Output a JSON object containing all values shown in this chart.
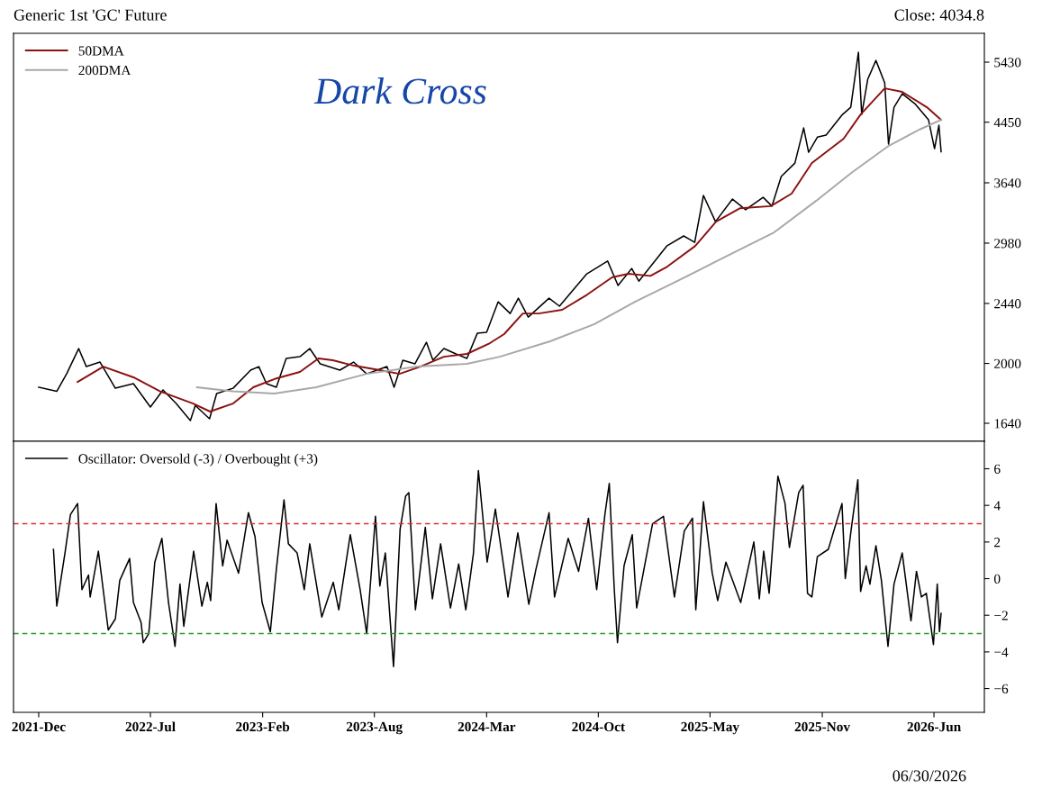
{
  "chart_data": [
    {
      "type": "line",
      "title": "Generic 1st 'GC' Future",
      "subtitle": "Close: 4034.8",
      "annotations": [
        "Dark Cross"
      ],
      "log": true,
      "legend": "top left",
      "tick_labels": "y",
      "xlim": [
        "2021-11-09",
        "2026-09-17"
      ],
      "ylim": [
        1545,
        5975
      ],
      "yticks": [
        1640,
        2000,
        2440,
        2980,
        3640,
        4450,
        5430
      ],
      "series": [
        {
          "color": "#000000",
          "x": [
            "2021-12-25",
            "2022-01-27",
            "2022-02-14",
            "2022-03-08",
            "2022-03-22",
            "2022-04-16",
            "2022-05-14",
            "2022-06-16",
            "2022-07-17",
            "2022-08-09",
            "2022-09-02",
            "2022-09-28",
            "2022-10-07",
            "2022-11-02",
            "2022-11-15",
            "2022-12-15",
            "2023-01-16",
            "2023-01-31",
            "2023-02-14",
            "2023-03-04",
            "2023-03-22",
            "2023-04-16",
            "2023-05-04",
            "2023-05-23",
            "2023-06-28",
            "2023-07-23",
            "2023-08-16",
            "2023-09-22",
            "2023-10-05",
            "2023-10-21",
            "2023-11-12",
            "2023-12-03",
            "2023-12-15",
            "2024-01-04",
            "2024-01-26",
            "2024-02-15",
            "2024-03-05",
            "2024-03-22",
            "2024-04-12",
            "2024-05-04",
            "2024-05-19",
            "2024-06-06",
            "2024-07-14",
            "2024-08-02",
            "2024-09-21",
            "2024-10-29",
            "2024-11-17",
            "2024-12-12",
            "2024-12-25",
            "2025-02-14",
            "2025-03-17",
            "2025-04-06",
            "2025-04-22",
            "2025-05-14",
            "2025-06-14",
            "2025-07-08",
            "2025-08-09",
            "2025-08-25",
            "2025-09-11",
            "2025-10-06",
            "2025-10-22",
            "2025-10-31",
            "2025-11-16",
            "2025-12-02",
            "2026-01-01",
            "2026-01-16",
            "2026-01-30",
            "2026-02-05",
            "2026-02-16",
            "2026-03-03",
            "2026-03-19",
            "2026-03-26",
            "2026-04-05",
            "2026-04-20",
            "2026-05-13",
            "2026-06-07",
            "2026-06-18",
            "2026-06-26",
            "2026-06-30"
          ],
          "values": [
            1848,
            1823,
            1932,
            2101,
            1979,
            2009,
            1842,
            1870,
            1731,
            1832,
            1751,
            1655,
            1740,
            1665,
            1810,
            1842,
            1956,
            1979,
            1870,
            1848,
            2033,
            2045,
            2101,
            1997,
            1956,
            2009,
            1932,
            1979,
            1848,
            2021,
            1997,
            2145,
            2021,
            2101,
            2064,
            2033,
            2210,
            2217,
            2453,
            2360,
            2483,
            2332,
            2483,
            2418,
            2692,
            2808,
            2590,
            2740,
            2627,
            2952,
            3052,
            2988,
            3491,
            3200,
            3449,
            3329,
            3469,
            3369,
            3716,
            3886,
            4366,
            4028,
            4234,
            4263,
            4566,
            4676,
            5610,
            4566,
            5130,
            5461,
            5069,
            4138,
            4676,
            4890,
            4733,
            4485,
            4076,
            4405,
            4034.8
          ]
        },
        {
          "name": "50DMA",
          "color": "#8b1111",
          "x": [
            "2022-03-06",
            "2022-04-22",
            "2022-06-16",
            "2022-08-04",
            "2022-10-03",
            "2022-11-03",
            "2022-12-15",
            "2023-01-21",
            "2023-03-04",
            "2023-04-16",
            "2023-05-20",
            "2023-06-15",
            "2023-07-24",
            "2023-09-09",
            "2023-10-15",
            "2023-11-22",
            "2024-01-04",
            "2024-02-15",
            "2024-03-28",
            "2024-04-23",
            "2024-05-27",
            "2024-06-25",
            "2024-08-07",
            "2024-09-22",
            "2024-11-06",
            "2024-12-06",
            "2025-01-15",
            "2025-02-15",
            "2025-04-07",
            "2025-05-15",
            "2025-06-28",
            "2025-08-23",
            "2025-09-30",
            "2025-11-06",
            "2026-01-03",
            "2026-02-03",
            "2026-03-19",
            "2026-04-20",
            "2026-06-04",
            "2026-06-30"
          ],
          "values": [
            1881,
            1979,
            1910,
            1823,
            1751,
            1705,
            1751,
            1848,
            1903,
            1944,
            2033,
            2021,
            1985,
            1956,
            1932,
            1979,
            2045,
            2064,
            2139,
            2204,
            2360,
            2360,
            2389,
            2513,
            2660,
            2692,
            2673,
            2757,
            2952,
            3200,
            3346,
            3369,
            3512,
            3886,
            4213,
            4566,
            4978,
            4920,
            4676,
            4485
          ]
        },
        {
          "name": "200DMA",
          "color": "#a8a8a8",
          "x": [
            "2022-10-10",
            "2022-12-15",
            "2023-02-28",
            "2023-05-16",
            "2023-08-16",
            "2023-11-16",
            "2024-02-15",
            "2024-04-15",
            "2024-07-16",
            "2024-10-05",
            "2024-12-18",
            "2025-03-05",
            "2025-06-01",
            "2025-08-29",
            "2025-11-14",
            "2026-01-17",
            "2026-03-26",
            "2026-05-21",
            "2026-06-30"
          ],
          "values": [
            1848,
            1823,
            1810,
            1848,
            1932,
            1979,
            1997,
            2045,
            2152,
            2278,
            2453,
            2627,
            2848,
            3088,
            3430,
            3761,
            4113,
            4341,
            4485
          ]
        }
      ]
    },
    {
      "type": "line",
      "annotations": [
        "06/30/2026"
      ],
      "legend": "top left",
      "xlim": [
        "2021-11-09",
        "2026-09-17"
      ],
      "xticks": [
        {
          "value": "2021-12-25",
          "label": "2021-Dec"
        },
        {
          "value": "2022-07-17",
          "label": "2022-Jul"
        },
        {
          "value": "2023-02-07",
          "label": "2023-Feb"
        },
        {
          "value": "2023-08-30",
          "label": "2023-Aug"
        },
        {
          "value": "2024-03-22",
          "label": "2024-Mar"
        },
        {
          "value": "2024-10-12",
          "label": "2024-Oct"
        },
        {
          "value": "2025-05-04",
          "label": "2025-May"
        },
        {
          "value": "2025-11-25",
          "label": "2025-Nov"
        },
        {
          "value": "2026-06-17",
          "label": "2026-Jun"
        }
      ],
      "ylim": [
        -7.3,
        7.5
      ],
      "yticks": [
        {
          "value": -6,
          "label": "−6"
        },
        {
          "value": -4,
          "label": "−4"
        },
        {
          "value": -2,
          "label": "−2"
        },
        0,
        2,
        4,
        6
      ],
      "ref_lines": [
        {
          "axis": "y",
          "value": 3,
          "color": "#e03030",
          "line_style": "dashed"
        },
        {
          "axis": "y",
          "value": -3,
          "color": "#2a9a2a",
          "line_style": "dashed"
        }
      ],
      "series": [
        {
          "name": "Oscillator: Oversold (-3) / Overbought (+3)",
          "color": "#000000",
          "x": [
            "2022-01-21",
            "2022-01-27",
            "2022-02-11",
            "2022-02-21",
            "2022-03-06",
            "2022-03-14",
            "2022-03-26",
            "2022-03-29",
            "2022-04-13",
            "2022-05-01",
            "2022-05-14",
            "2022-05-22",
            "2022-06-09",
            "2022-06-16",
            "2022-06-30",
            "2022-07-04",
            "2022-07-14",
            "2022-07-25",
            "2022-08-07",
            "2022-08-19",
            "2022-08-31",
            "2022-09-09",
            "2022-09-16",
            "2022-10-04",
            "2022-10-19",
            "2022-10-29",
            "2022-11-04",
            "2022-11-14",
            "2022-11-26",
            "2022-12-04",
            "2022-12-25",
            "2023-01-12",
            "2023-01-24",
            "2023-02-06",
            "2023-02-21",
            "2023-03-04",
            "2023-03-18",
            "2023-03-26",
            "2023-04-11",
            "2023-04-24",
            "2023-05-04",
            "2023-05-26",
            "2023-06-16",
            "2023-06-26",
            "2023-07-17",
            "2023-08-04",
            "2023-08-16",
            "2023-09-01",
            "2023-09-09",
            "2023-09-19",
            "2023-10-04",
            "2023-10-16",
            "2023-10-26",
            "2023-11-01",
            "2023-11-13",
            "2023-12-01",
            "2023-12-14",
            "2023-12-29",
            "2024-01-16",
            "2024-01-31",
            "2024-02-13",
            "2024-02-27",
            "2024-03-07",
            "2024-03-23",
            "2024-04-07",
            "2024-04-23",
            "2024-04-30",
            "2024-05-18",
            "2024-06-07",
            "2024-06-20",
            "2024-07-14",
            "2024-07-24",
            "2024-08-18",
            "2024-09-06",
            "2024-09-24",
            "2024-10-09",
            "2024-10-24",
            "2024-11-01",
            "2024-11-10",
            "2024-11-16",
            "2024-11-28",
            "2024-12-13",
            "2024-12-21",
            "2025-01-19",
            "2025-02-08",
            "2025-02-28",
            "2025-03-18",
            "2025-04-02",
            "2025-04-08",
            "2025-04-22",
            "2025-05-08",
            "2025-05-18",
            "2025-06-02",
            "2025-06-29",
            "2025-07-23",
            "2025-08-02",
            "2025-08-10",
            "2025-08-20",
            "2025-09-05",
            "2025-09-18",
            "2025-09-26",
            "2025-10-13",
            "2025-10-21",
            "2025-10-29",
            "2025-11-06",
            "2025-11-16",
            "2025-12-06",
            "2025-12-31",
            "2026-01-06",
            "2026-01-16",
            "2026-01-29",
            "2026-02-03",
            "2026-02-13",
            "2026-02-20",
            "2026-03-03",
            "2026-03-13",
            "2026-03-25",
            "2026-04-05",
            "2026-04-20",
            "2026-05-06",
            "2026-05-16",
            "2026-05-25",
            "2026-06-03",
            "2026-06-16",
            "2026-06-23",
            "2026-06-27",
            "2026-06-30"
          ],
          "values": [
            1.6,
            -1.5,
            1.4,
            3.5,
            4.1,
            -0.6,
            0.2,
            -1.0,
            1.5,
            -2.8,
            -2.2,
            -0.1,
            1.1,
            -1.3,
            -2.4,
            -3.5,
            -3.0,
            0.9,
            2.2,
            -1.3,
            -3.7,
            -0.3,
            -2.6,
            1.5,
            -1.5,
            -0.2,
            -1.2,
            4.1,
            0.7,
            2.1,
            0.3,
            3.6,
            2.3,
            -1.3,
            -2.9,
            0.5,
            4.3,
            1.9,
            1.4,
            -0.6,
            1.9,
            -2.1,
            -0.2,
            -1.7,
            2.4,
            -0.6,
            -3.0,
            3.4,
            -0.4,
            1.4,
            -4.8,
            2.7,
            4.5,
            4.7,
            -1.7,
            2.8,
            -1.1,
            1.9,
            -1.6,
            0.8,
            -1.7,
            1.4,
            5.9,
            0.9,
            3.8,
            0.5,
            -1.0,
            2.5,
            -1.4,
            0.5,
            3.6,
            -1.0,
            2.2,
            0.4,
            3.3,
            -0.6,
            3.5,
            5.2,
            -0.5,
            -3.5,
            0.7,
            2.4,
            -1.6,
            3.0,
            3.4,
            -1.0,
            2.6,
            3.3,
            -1.7,
            4.2,
            0.3,
            -1.2,
            0.9,
            -1.3,
            2.0,
            -1.1,
            1.5,
            -0.8,
            5.6,
            4.1,
            1.7,
            4.7,
            5.1,
            -0.8,
            -1.0,
            1.2,
            1.6,
            4.1,
            0.0,
            2.5,
            5.4,
            -0.7,
            0.7,
            -0.3,
            1.8,
            -0.1,
            -3.7,
            -0.3,
            1.4,
            -2.3,
            0.4,
            -1.0,
            -0.8,
            -3.6,
            -0.3,
            -2.9,
            -1.9
          ]
        }
      ]
    }
  ]
}
